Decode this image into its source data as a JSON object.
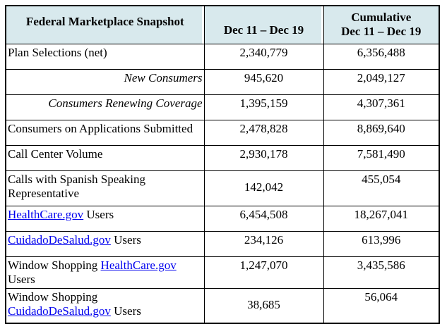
{
  "table": {
    "title": "Federal Marketplace Snapshot",
    "header": {
      "col1": "Federal Marketplace Snapshot",
      "col2": "Dec 11 – Dec 19",
      "col3_line1": "Cumulative",
      "col3_line2": "Dec 11 – Dec 19"
    },
    "rows": [
      {
        "label": "Plan Selections (net)",
        "period": "2,340,779",
        "cumulative": "6,356,488"
      },
      {
        "label": "New Consumers",
        "period": "945,620",
        "cumulative": "2,049,127"
      },
      {
        "label": "Consumers Renewing Coverage",
        "period": "1,395,159",
        "cumulative": "4,307,361"
      },
      {
        "label": "Consumers on Applications Submitted",
        "period": "2,478,828",
        "cumulative": "8,869,640"
      },
      {
        "label": "Call Center Volume",
        "period": "2,930,178",
        "cumulative": "7,581,490"
      },
      {
        "label": "Calls with Spanish Speaking Representative",
        "period": "142,042",
        "cumulative": "455,054"
      },
      {
        "prefix": "",
        "link": "HealthCare.gov",
        "suffix": " Users",
        "period": "6,454,508",
        "cumulative": "18,267,041"
      },
      {
        "prefix": "",
        "link": "CuidadoDeSalud.gov",
        "suffix": " Users",
        "period": "234,126",
        "cumulative": "613,996"
      },
      {
        "prefix": "Window Shopping ",
        "link": "HealthCare.gov",
        "suffix": " Users",
        "period": "1,247,070",
        "cumulative": "3,435,586"
      },
      {
        "prefix": "Window Shopping ",
        "link": "CuidadoDeSalud.gov",
        "suffix": " Users",
        "period": "38,685",
        "cumulative": "56,064"
      }
    ],
    "colors": {
      "header_bg": "#d8e9ed",
      "link": "#0000ee",
      "border": "#000000"
    }
  }
}
